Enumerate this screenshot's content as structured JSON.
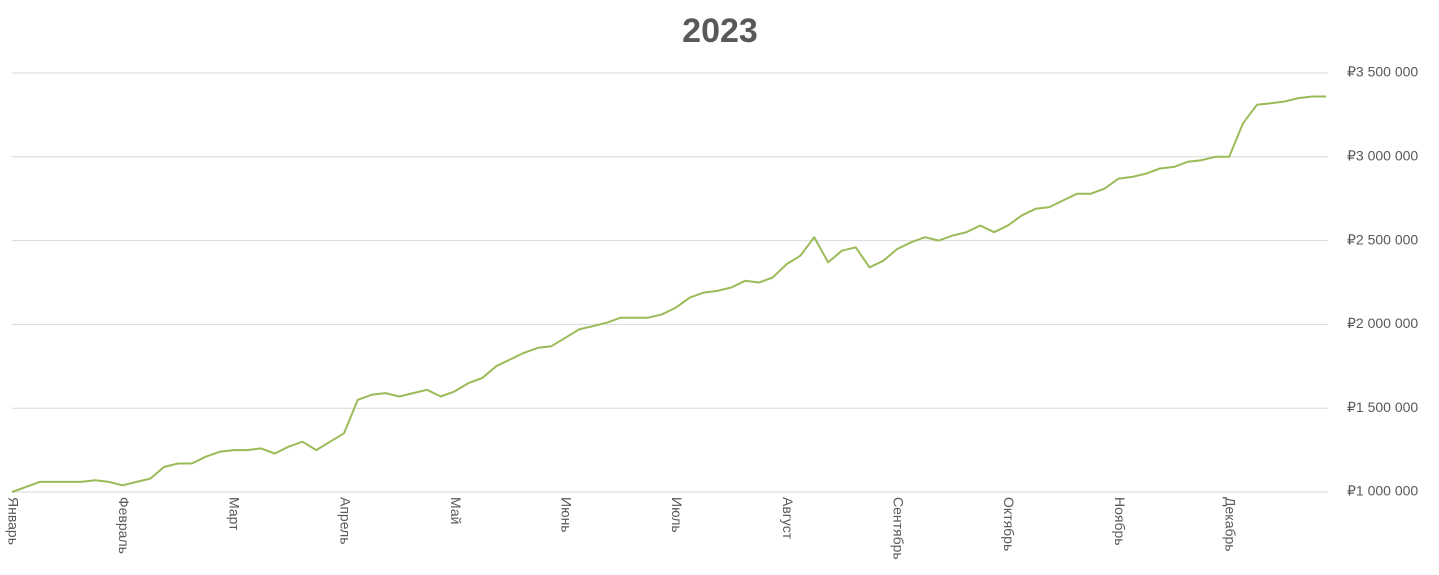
{
  "chart_data": {
    "type": "line",
    "title": "2023",
    "categories": [
      "Январь",
      null,
      null,
      null,
      null,
      null,
      null,
      null,
      "Февраль",
      null,
      null,
      null,
      null,
      null,
      null,
      null,
      "Март",
      null,
      null,
      null,
      null,
      null,
      null,
      null,
      "Апрель",
      null,
      null,
      null,
      null,
      null,
      null,
      null,
      "Май",
      null,
      null,
      null,
      null,
      null,
      null,
      null,
      "Июнь",
      null,
      null,
      null,
      null,
      null,
      null,
      null,
      "Июль",
      null,
      null,
      null,
      null,
      null,
      null,
      null,
      "Август",
      null,
      null,
      null,
      null,
      null,
      null,
      null,
      "Сентябрь",
      null,
      null,
      null,
      null,
      null,
      null,
      null,
      "Октябрь",
      null,
      null,
      null,
      null,
      null,
      null,
      null,
      "Ноябрь",
      null,
      null,
      null,
      null,
      null,
      null,
      null,
      "Декабрь",
      null,
      null,
      null,
      null,
      null,
      null,
      null
    ],
    "series": [
      {
        "color": "#9bbb59",
        "values": [
          1000000,
          1030000,
          1060000,
          1060000,
          1060000,
          1060000,
          1070000,
          1060000,
          1040000,
          1060000,
          1080000,
          1150000,
          1170000,
          1170000,
          1210000,
          1240000,
          1250000,
          1250000,
          1260000,
          1230000,
          1270000,
          1300000,
          1250000,
          1300000,
          1350000,
          1550000,
          1580000,
          1590000,
          1570000,
          1590000,
          1610000,
          1570000,
          1600000,
          1650000,
          1680000,
          1750000,
          1790000,
          1830000,
          1860000,
          1870000,
          1920000,
          1970000,
          1990000,
          2010000,
          2040000,
          2040000,
          2040000,
          2060000,
          2100000,
          2160000,
          2190000,
          2200000,
          2220000,
          2260000,
          2250000,
          2280000,
          2360000,
          2410000,
          2520000,
          2370000,
          2440000,
          2460000,
          2340000,
          2380000,
          2450000,
          2490000,
          2520000,
          2500000,
          2530000,
          2550000,
          2590000,
          2550000,
          2590000,
          2650000,
          2690000,
          2700000,
          2740000,
          2780000,
          2780000,
          2810000,
          2870000,
          2880000,
          2900000,
          2930000,
          2940000,
          2970000,
          2980000,
          3000000,
          3000000,
          3200000,
          3310000,
          3320000,
          3330000,
          3350000,
          3360000,
          3360000
        ]
      }
    ],
    "ylim": [
      1000000,
      3500000
    ],
    "yticks": [
      {
        "value": 1000000,
        "label": "₽1 000 000"
      },
      {
        "value": 1500000,
        "label": "₽1 500 000"
      },
      {
        "value": 2000000,
        "label": "₽2 000 000"
      },
      {
        "value": 2500000,
        "label": "₽2 500 000"
      },
      {
        "value": 3000000,
        "label": "₽3 000 000"
      },
      {
        "value": 3500000,
        "label": "₽3 500 000"
      }
    ],
    "grid": true
  }
}
